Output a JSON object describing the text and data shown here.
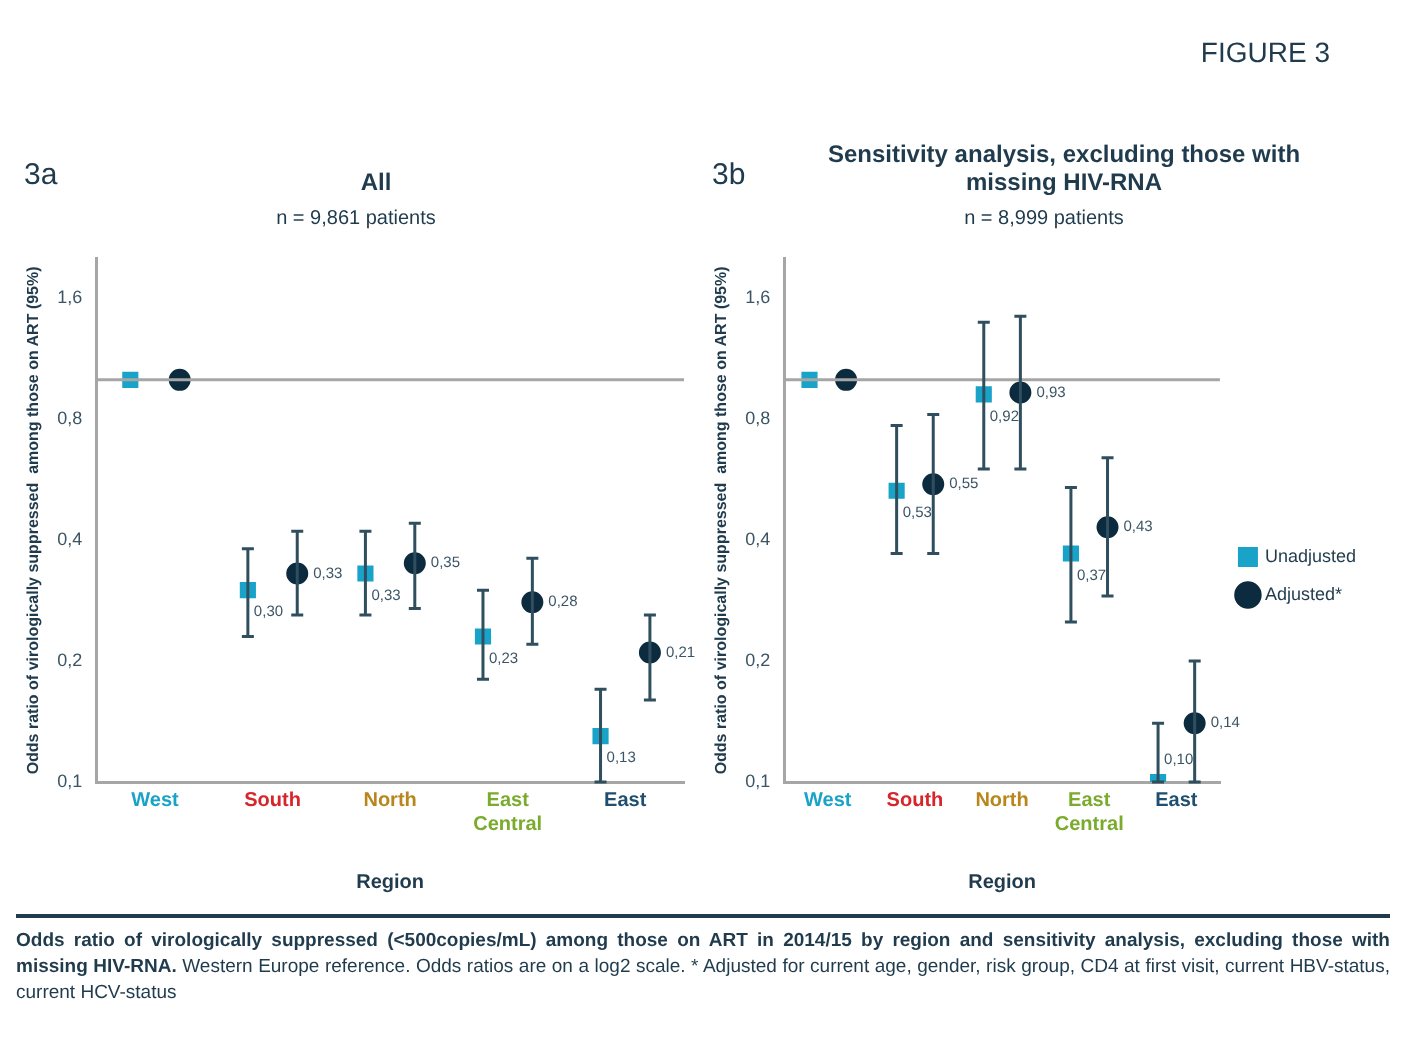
{
  "chart_data": [
    {
      "type": "scatter",
      "title": "All",
      "subtitle": "n = 9,861 patients",
      "xlabel": "Region",
      "ylabel": "Odds ratio of virologically suppressed  among those on ART (95%)",
      "annotations": [
        "3a",
        "FIGURE 3",
        "Odds ratio of virologically suppressed (<500copies/mL) among those on ART in 2014/15 by region and sensitivity analysis, excluding those with missing HIV-RNA.",
        "Western Europe reference. Odds ratios are on a log2 scale. * Adjusted for current age, gender, risk group, CD4 at first visit, current HBV-status, current HCV-status"
      ],
      "categories": [
        "West",
        "South",
        "North",
        "East Central",
        "East"
      ],
      "series": [
        {
          "color": "#1aa3c8",
          "marker": "square",
          "values": [
            1,
            0.3,
            0.33,
            0.23,
            0.13
          ],
          "errors": [
            null,
            [
              0.23,
              0.38
            ],
            [
              0.26,
              0.42
            ],
            [
              0.18,
              0.3
            ],
            [
              0.1,
              0.17
            ]
          ],
          "value_labels": [
            null,
            "0,30",
            "0,33",
            "0,23",
            "0,13"
          ]
        },
        {
          "color": "#0d2b3e",
          "marker": "circle",
          "values": [
            1,
            0.33,
            0.35,
            0.28,
            0.21
          ],
          "errors": [
            null,
            [
              0.26,
              0.42
            ],
            [
              0.27,
              0.44
            ],
            [
              0.22,
              0.36
            ],
            [
              0.16,
              0.26
            ]
          ],
          "value_labels": [
            null,
            "0,33",
            "0,35",
            "0,28",
            "0,21"
          ]
        }
      ],
      "log": "y",
      "ylim": [
        0.1,
        2
      ],
      "yticks": [
        {
          "value": 0.1,
          "label": "0,1"
        },
        {
          "value": 0.2,
          "label": "0,2"
        },
        {
          "value": 0.4,
          "label": "0,4"
        },
        {
          "value": 0.8,
          "label": "0,8"
        },
        {
          "value": 1.6,
          "label": "1,6"
        }
      ],
      "ref_lines": [
        {
          "axis": "y",
          "value": 1,
          "color": "#a6a6a6"
        }
      ],
      "grid": false,
      "legend": false
    },
    {
      "type": "scatter",
      "title": "Sensitivity analysis, excluding those with missing HIV-RNA",
      "subtitle": "n = 8,999 patients",
      "xlabel": "Region",
      "ylabel": "Odds ratio of virologically suppressed  among those on ART (95%)",
      "annotations": [
        "3b"
      ],
      "categories": [
        "West",
        "South",
        "North",
        "East Central",
        "East"
      ],
      "series": [
        {
          "name": "Unadjusted",
          "color": "#1aa3c8",
          "marker": "square",
          "values": [
            1,
            0.53,
            0.92,
            0.37,
            0.1
          ],
          "errors": [
            null,
            [
              0.37,
              0.77
            ],
            [
              0.6,
              1.39
            ],
            [
              0.25,
              0.54
            ],
            [
              0.1,
              0.14
            ]
          ],
          "value_labels": [
            null,
            "0,53",
            "0,92",
            "0,37",
            "0,10"
          ]
        },
        {
          "name": "Adjusted*",
          "color": "#0d2b3e",
          "marker": "circle",
          "values": [
            1,
            0.55,
            0.93,
            0.43,
            0.14
          ],
          "errors": [
            null,
            [
              0.37,
              0.82
            ],
            [
              0.6,
              1.44
            ],
            [
              0.29,
              0.64
            ],
            [
              0.1,
              0.2
            ]
          ],
          "value_labels": [
            null,
            "0,55",
            "0,93",
            "0,43",
            "0,14"
          ]
        }
      ],
      "log": "y",
      "ylim": [
        0.1,
        2
      ],
      "yticks": [
        {
          "value": 0.1,
          "label": "0,1"
        },
        {
          "value": 0.2,
          "label": "0,2"
        },
        {
          "value": 0.4,
          "label": "0,4"
        },
        {
          "value": 0.8,
          "label": "0,8"
        },
        {
          "value": 1.6,
          "label": "1,6"
        }
      ],
      "ref_lines": [
        {
          "axis": "y",
          "value": 1,
          "color": "#a6a6a6"
        }
      ],
      "grid": false,
      "legend": "right"
    }
  ]
}
